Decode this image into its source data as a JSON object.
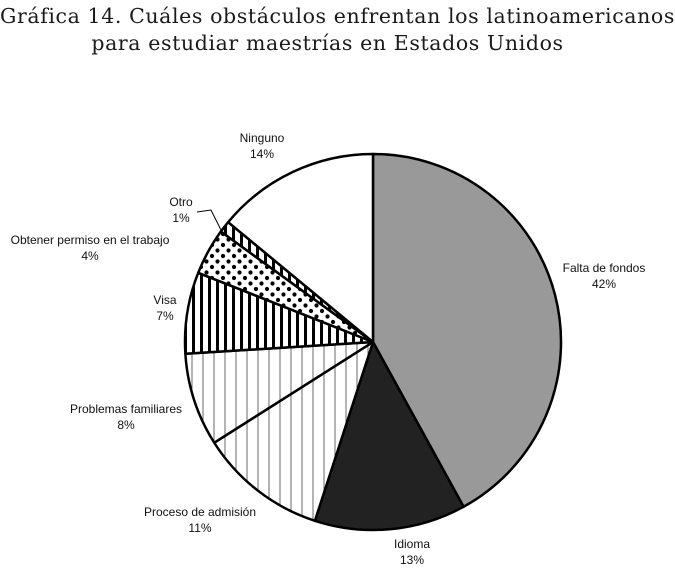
{
  "figure": {
    "title_line1": "Gráfica 14. Cuáles obstáculos enfrentan los latinoamericanos",
    "title_line2": "para estudiar maestrías en Estados Unidos"
  },
  "chart_data": {
    "type": "pie",
    "title": "Gráfica 14. Cuáles obstáculos enfrentan los latinoamericanos para estudiar maestrías en Estados Unidos",
    "start": "12 o'clock",
    "direction": "clockwise",
    "legend": "none (slice labels outside pie)",
    "slices": [
      {
        "label": "Falta de fondos",
        "value": 42,
        "value_label": "42%",
        "fill": "gray",
        "color": "#999999"
      },
      {
        "label": "Idioma",
        "value": 13,
        "value_label": "13%",
        "fill": "black",
        "color": "#222222"
      },
      {
        "label": "Proceso de admisión",
        "value": 11,
        "value_label": "11%",
        "fill": "thin vertical lines",
        "color": "#ffffff"
      },
      {
        "label": "Problemas familiares",
        "value": 8,
        "value_label": "8%",
        "fill": "thin vertical lines",
        "color": "#ffffff"
      },
      {
        "label": "Visa",
        "value": 7,
        "value_label": "7%",
        "fill": "thick vertical stripes",
        "color": "#000000"
      },
      {
        "label": "Obtener permiso en el trabajo",
        "value": 4,
        "value_label": "4%",
        "fill": "dots",
        "color": "#000000"
      },
      {
        "label": "Otro",
        "value": 1,
        "value_label": "1%",
        "fill": "thick vertical stripes",
        "color": "#000000"
      },
      {
        "label": "Ninguno",
        "value": 14,
        "value_label": "14%",
        "fill": "white",
        "color": "#ffffff"
      }
    ]
  }
}
